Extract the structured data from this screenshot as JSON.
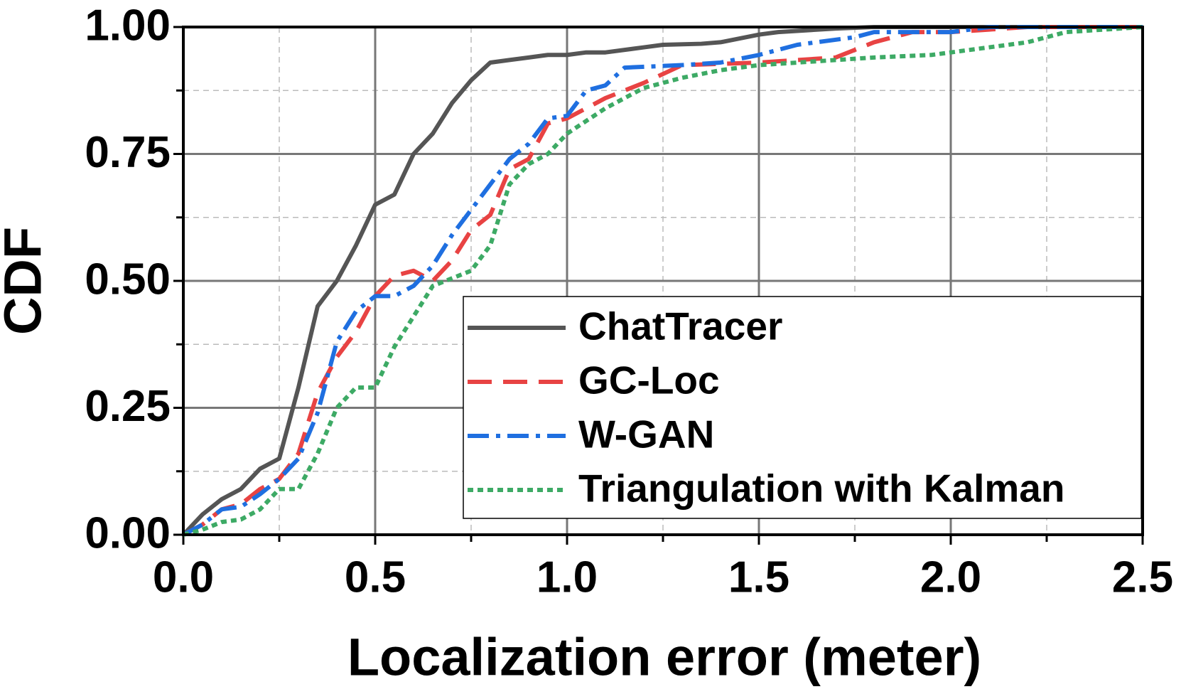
{
  "chart_data": {
    "type": "line",
    "xlabel": "Localization error (meter)",
    "ylabel": "CDF",
    "xlim": [
      0,
      2.5
    ],
    "ylim": [
      0,
      1
    ],
    "xticks": [
      {
        "value": 0,
        "label": "0.0"
      },
      {
        "value": 0.5,
        "label": "0.5"
      },
      {
        "value": 1,
        "label": "1.0"
      },
      {
        "value": 1.5,
        "label": "1.5"
      },
      {
        "value": 2,
        "label": "2.0"
      },
      {
        "value": 2.5,
        "label": "2.5"
      }
    ],
    "yticks": [
      {
        "value": 0,
        "label": "0.00"
      },
      {
        "value": 0.25,
        "label": "0.25"
      },
      {
        "value": 0.5,
        "label": "0.50"
      },
      {
        "value": 0.75,
        "label": "0.75"
      },
      {
        "value": 1,
        "label": "1.00"
      }
    ],
    "grid": true,
    "legend": "lower right",
    "series": [
      {
        "name": "ChatTracer",
        "color": "#555555",
        "dash": "solid",
        "x": [
          0,
          0.05,
          0.1,
          0.15,
          0.2,
          0.25,
          0.3,
          0.35,
          0.4,
          0.45,
          0.5,
          0.55,
          0.6,
          0.65,
          0.7,
          0.75,
          0.8,
          0.85,
          0.9,
          0.95,
          1.0,
          1.05,
          1.1,
          1.2,
          1.25,
          1.35,
          1.4,
          1.5,
          1.55,
          1.7,
          1.8,
          2.5
        ],
        "values": [
          0,
          0.04,
          0.07,
          0.09,
          0.13,
          0.15,
          0.29,
          0.45,
          0.5,
          0.57,
          0.65,
          0.67,
          0.75,
          0.79,
          0.85,
          0.895,
          0.93,
          0.935,
          0.94,
          0.945,
          0.945,
          0.95,
          0.95,
          0.96,
          0.965,
          0.967,
          0.97,
          0.985,
          0.99,
          0.997,
          1,
          1
        ]
      },
      {
        "name": "GC-Loc",
        "color": "#e84343",
        "dash": "dashed",
        "x": [
          0,
          0.05,
          0.1,
          0.15,
          0.2,
          0.25,
          0.3,
          0.35,
          0.4,
          0.45,
          0.5,
          0.55,
          0.6,
          0.65,
          0.7,
          0.75,
          0.8,
          0.85,
          0.9,
          0.95,
          1.0,
          1.1,
          1.2,
          1.3,
          1.5,
          1.6,
          1.7,
          1.8,
          1.9,
          2.0,
          2.1,
          2.2,
          2.5
        ],
        "values": [
          0,
          0.02,
          0.05,
          0.06,
          0.09,
          0.11,
          0.16,
          0.28,
          0.35,
          0.4,
          0.47,
          0.51,
          0.52,
          0.5,
          0.54,
          0.6,
          0.63,
          0.72,
          0.74,
          0.81,
          0.82,
          0.86,
          0.89,
          0.925,
          0.93,
          0.935,
          0.94,
          0.97,
          0.99,
          0.99,
          0.995,
          1,
          1
        ]
      },
      {
        "name": "W-GAN",
        "color": "#1f6fe0",
        "dash": "dashdot",
        "x": [
          0,
          0.05,
          0.1,
          0.15,
          0.2,
          0.25,
          0.3,
          0.35,
          0.4,
          0.45,
          0.5,
          0.55,
          0.6,
          0.65,
          0.7,
          0.75,
          0.8,
          0.85,
          0.9,
          0.95,
          1.0,
          1.05,
          1.1,
          1.15,
          1.3,
          1.4,
          1.5,
          1.6,
          1.75,
          1.8,
          2.0,
          2.1,
          2.5
        ],
        "values": [
          0,
          0.02,
          0.05,
          0.055,
          0.08,
          0.11,
          0.15,
          0.24,
          0.38,
          0.44,
          0.47,
          0.47,
          0.49,
          0.53,
          0.59,
          0.64,
          0.69,
          0.74,
          0.77,
          0.82,
          0.825,
          0.875,
          0.885,
          0.92,
          0.925,
          0.93,
          0.945,
          0.965,
          0.98,
          0.99,
          0.99,
          1,
          1
        ]
      },
      {
        "name": "Triangulation with Kalman",
        "color": "#3daa65",
        "dash": "dotted",
        "x": [
          0,
          0.05,
          0.1,
          0.15,
          0.2,
          0.25,
          0.3,
          0.35,
          0.4,
          0.45,
          0.5,
          0.55,
          0.6,
          0.65,
          0.7,
          0.75,
          0.8,
          0.85,
          0.9,
          0.95,
          1.0,
          1.1,
          1.2,
          1.3,
          1.4,
          1.5,
          1.6,
          1.8,
          1.95,
          2.0,
          2.1,
          2.2,
          2.3,
          2.4,
          2.5
        ],
        "values": [
          0,
          0.01,
          0.025,
          0.03,
          0.05,
          0.09,
          0.09,
          0.16,
          0.25,
          0.29,
          0.29,
          0.37,
          0.43,
          0.49,
          0.505,
          0.52,
          0.57,
          0.69,
          0.73,
          0.75,
          0.79,
          0.84,
          0.88,
          0.9,
          0.915,
          0.925,
          0.93,
          0.94,
          0.945,
          0.95,
          0.96,
          0.97,
          0.99,
          0.995,
          1
        ]
      }
    ]
  }
}
